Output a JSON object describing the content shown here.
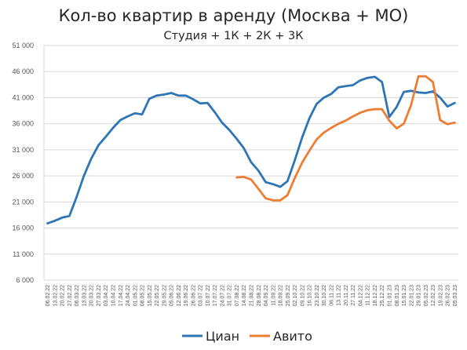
{
  "chart_data": {
    "type": "line",
    "title": "Кол-во квартир в аренду (Москва + МО)",
    "subtitle": "Студия + 1К + 2К + 3К",
    "ylim": [
      6000,
      51000
    ],
    "yticks": [
      "6 000",
      "11 000",
      "16 000",
      "21 000",
      "26 000",
      "31 000",
      "36 000",
      "41 000",
      "46 000",
      "51 000"
    ],
    "ytick_values": [
      6000,
      11000,
      16000,
      21000,
      26000,
      31000,
      36000,
      41000,
      46000,
      51000
    ],
    "grid": true,
    "legend_position": "bottom",
    "x": [
      "06.02.22",
      "13.02.22",
      "20.02.22",
      "27.02.22",
      "06.03.22",
      "13.03.22",
      "20.03.22",
      "27.03.22",
      "03.04.22",
      "10.04.22",
      "17.04.22",
      "24.04.22",
      "01.05.22",
      "08.05.22",
      "15.05.22",
      "22.05.22",
      "29.05.22",
      "05.06.22",
      "12.06.22",
      "19.06.22",
      "26.06.22",
      "03.07.22",
      "10.07.22",
      "17.07.22",
      "24.07.22",
      "31.07.22",
      "07.08.22",
      "14.08.22",
      "21.08.22",
      "28.08.22",
      "04.09.22",
      "11.09.22",
      "18.09.22",
      "25.09.22",
      "02.10.22",
      "09.10.22",
      "16.10.22",
      "23.10.22",
      "30.10.22",
      "06.11.22",
      "13.11.22",
      "20.11.22",
      "27.11.22",
      "04.12.22",
      "11.12.22",
      "18.12.22",
      "25.12.22",
      "01.01.23",
      "08.01.23",
      "15.01.23",
      "22.01.23",
      "29.01.23",
      "05.02.23",
      "12.02.23",
      "19.02.23",
      "26.02.23",
      "05.03.23"
    ],
    "series": [
      {
        "name": "Циан",
        "color": "#2e75b6",
        "values": [
          16900,
          17400,
          18000,
          18300,
          22000,
          26000,
          29300,
          31900,
          33500,
          35200,
          36700,
          37400,
          38000,
          37800,
          40800,
          41400,
          41600,
          41900,
          41400,
          41400,
          40700,
          39900,
          40000,
          38200,
          36200,
          34800,
          33100,
          31300,
          28600,
          27000,
          24800,
          24400,
          23900,
          25000,
          29000,
          33300,
          37000,
          39800,
          41000,
          41700,
          43000,
          43200,
          43400,
          44300,
          44800,
          45000,
          44000,
          37300,
          39200,
          42100,
          42300,
          42000,
          41900,
          42200,
          41000,
          39300,
          40000
        ]
      },
      {
        "name": "Авито",
        "color": "#ed7d31",
        "values": [
          null,
          null,
          null,
          null,
          null,
          null,
          null,
          null,
          null,
          null,
          null,
          null,
          null,
          null,
          null,
          null,
          null,
          null,
          null,
          null,
          null,
          null,
          null,
          null,
          null,
          null,
          25700,
          25800,
          25300,
          23500,
          21700,
          21300,
          21300,
          22300,
          25600,
          28500,
          30800,
          33000,
          34300,
          35200,
          36000,
          36600,
          37400,
          38100,
          38600,
          38800,
          38800,
          36600,
          35100,
          36000,
          39600,
          45100,
          45100,
          44000,
          36700,
          35900,
          36200
        ]
      }
    ]
  }
}
